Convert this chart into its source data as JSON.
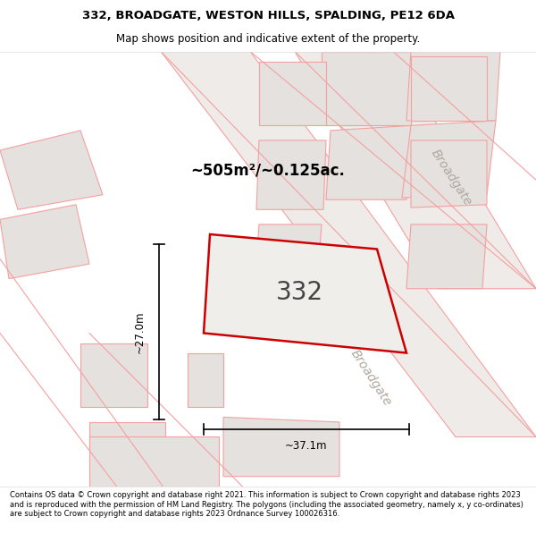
{
  "title_line1": "332, BROADGATE, WESTON HILLS, SPALDING, PE12 6DA",
  "title_line2": "Map shows position and indicative extent of the property.",
  "area_text": "~505m²/~0.125ac.",
  "number_label": "332",
  "dim_width": "~37.1m",
  "dim_height": "~27.0m",
  "footer_text": "Contains OS data © Crown copyright and database right 2021. This information is subject to Crown copyright and database rights 2023 and is reproduced with the permission of HM Land Registry. The polygons (including the associated geometry, namely x, y co-ordinates) are subject to Crown copyright and database rights 2023 Ordnance Survey 100026316.",
  "map_bg": "#f7f5f2",
  "main_plot_color": "#cc0000",
  "other_plot_color": "#f5a0a0",
  "gray_fill": "#e4e1de",
  "road_label_top": "Broadgate",
  "road_label_bottom": "Broadgate",
  "road_fill": "#eeebe8"
}
